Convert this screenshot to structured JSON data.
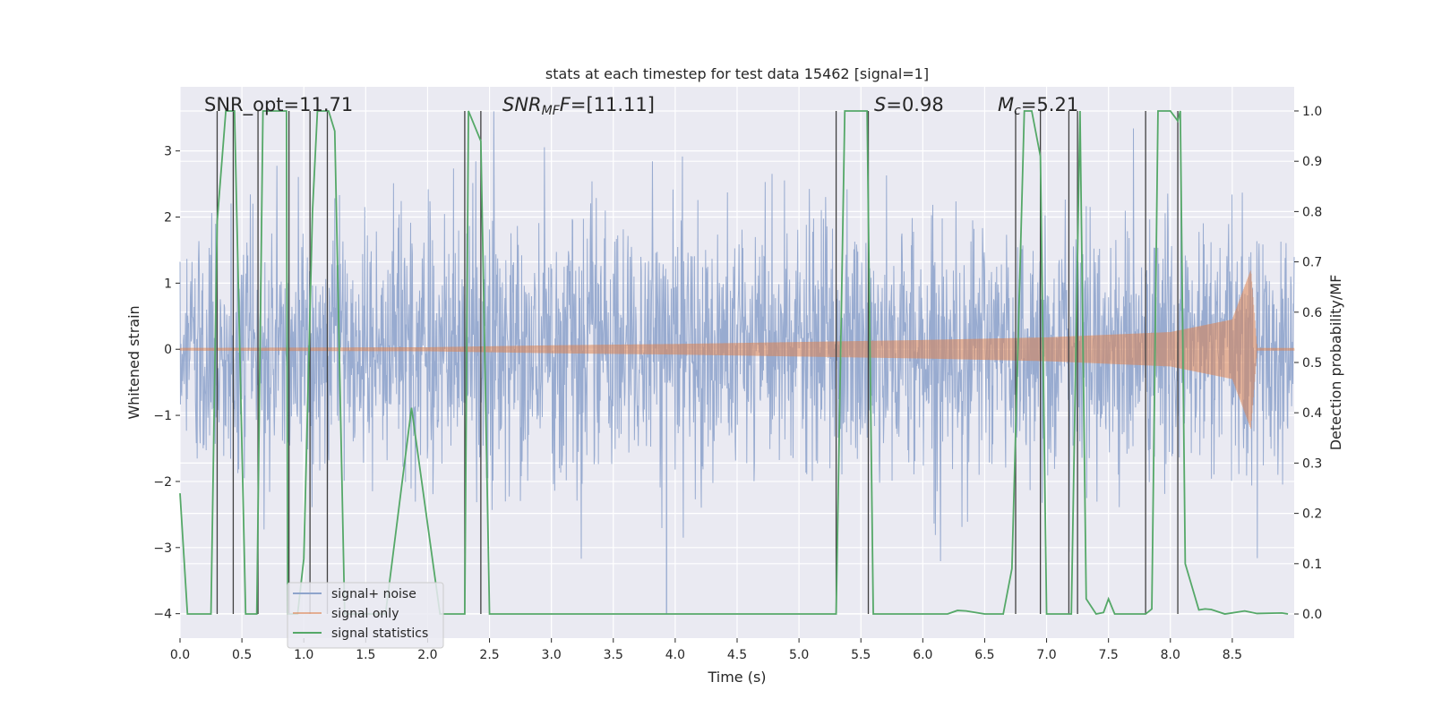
{
  "chart_data": {
    "type": "line",
    "title": "stats at each timestep for test data 15462 [signal=1]",
    "xlabel": "Time (s)",
    "ylabel": "Whitened strain",
    "ylabel_right": "Detection probability/MF",
    "xlim": [
      0,
      9.0
    ],
    "ylim": [
      -4.37,
      3.97
    ],
    "ylim_right": [
      -0.048,
      1.048
    ],
    "xticks": [
      0.0,
      0.5,
      1.0,
      1.5,
      2.0,
      2.5,
      3.0,
      3.5,
      4.0,
      4.5,
      5.0,
      5.5,
      6.0,
      6.5,
      7.0,
      7.5,
      8.0,
      8.5
    ],
    "xtick_labels": [
      "0.0",
      "0.5",
      "1.0",
      "1.5",
      "2.0",
      "2.5",
      "3.0",
      "3.5",
      "4.0",
      "4.5",
      "5.0",
      "5.5",
      "6.0",
      "6.5",
      "7.0",
      "7.5",
      "8.0",
      "8.5"
    ],
    "yticks": [
      -4,
      -3,
      -2,
      -1,
      0,
      1,
      2,
      3
    ],
    "ytick_labels": [
      "−4",
      "−3",
      "−2",
      "−1",
      "0",
      "1",
      "2",
      "3"
    ],
    "yticks_right": [
      0.0,
      0.1,
      0.2,
      0.3,
      0.4,
      0.5,
      0.6,
      0.7,
      0.8,
      0.9,
      1.0
    ],
    "ytick_labels_right": [
      "0.0",
      "0.1",
      "0.2",
      "0.3",
      "0.4",
      "0.5",
      "0.6",
      "0.7",
      "0.8",
      "0.9",
      "1.0"
    ],
    "colors": {
      "background": "#eaeaf2",
      "grid": "#ffffff",
      "noise": "#8fa4cc",
      "signal": "#dd8452",
      "stats": "#55a868",
      "vlines": "#404040"
    },
    "annotations": {
      "snr_opt": "SNR_opt=11.71",
      "snr_mf_main": "SNR",
      "snr_mf_sub": "MF",
      "snr_mf_rest": "=[11.11]",
      "s_main": "S",
      "s_rest": "=0.98",
      "mc_main": "M",
      "mc_sub": "c",
      "mc_rest": "=5.21"
    },
    "legend": {
      "position": "lower-left",
      "entries": [
        "signal+ noise",
        "signal only",
        "signal statistics"
      ]
    },
    "series": [
      {
        "name": "signal+ noise",
        "type": "noise",
        "x_range": [
          0,
          9.0
        ],
        "amplitude_range": [
          -2.3,
          2.3
        ],
        "extreme_values": [
          -4.0,
          3.6
        ]
      },
      {
        "name": "signal only",
        "type": "chirp",
        "x_range": [
          0,
          9.0
        ],
        "envelope": {
          "x": [
            0.0,
            2.0,
            3.0,
            4.0,
            5.0,
            6.0,
            7.0,
            8.0,
            8.5,
            8.65,
            8.7
          ],
          "y": [
            0.02,
            0.03,
            0.06,
            0.08,
            0.11,
            0.14,
            0.18,
            0.26,
            0.45,
            1.2,
            0.02
          ]
        }
      },
      {
        "name": "signal statistics",
        "type": "line",
        "axis": "right",
        "x": [
          0.0,
          0.06,
          0.25,
          0.3,
          0.37,
          0.44,
          0.53,
          0.62,
          0.67,
          0.86,
          0.87,
          0.95,
          1.0,
          1.07,
          1.11,
          1.2,
          1.25,
          1.33,
          1.4,
          1.66,
          1.87,
          2.1,
          2.16,
          2.24,
          2.3,
          2.33,
          2.43,
          2.5,
          2.55,
          2.6,
          5.25,
          5.3,
          5.37,
          5.55,
          5.6,
          6.2,
          6.28,
          6.35,
          6.5,
          6.65,
          6.72,
          6.82,
          6.88,
          6.95,
          7.0,
          7.1,
          7.2,
          7.27,
          7.32,
          7.4,
          7.46,
          7.5,
          7.55,
          7.8,
          7.85,
          7.9,
          8.0,
          8.06,
          8.08,
          8.12,
          8.23,
          8.28,
          8.33,
          8.44,
          8.6,
          8.7,
          8.9,
          8.95
        ],
        "y": [
          0.24,
          0.0,
          0.0,
          0.78,
          1.0,
          1.0,
          0.0,
          0.0,
          1.0,
          1.0,
          0.0,
          0.0,
          0.11,
          0.8,
          1.0,
          1.0,
          0.96,
          0.0,
          0.0,
          0.0,
          0.41,
          0.0,
          0.0,
          0.0,
          0.0,
          1.0,
          0.94,
          0.0,
          0.0,
          0.0,
          0.0,
          0.0,
          1.0,
          1.0,
          0.0,
          0.0,
          0.007,
          0.006,
          0.0,
          0.0,
          0.09,
          1.0,
          1.0,
          0.91,
          0.0,
          0.0,
          0.0,
          1.0,
          0.03,
          0.0,
          0.003,
          0.03,
          0.0,
          0.0,
          0.01,
          1.0,
          1.0,
          0.98,
          1.0,
          0.1,
          0.008,
          0.01,
          0.009,
          0.0,
          0.006,
          0.001,
          0.002,
          0.0
        ]
      }
    ],
    "vlines": [
      0.3,
      0.43,
      0.63,
      0.88,
      1.05,
      1.19,
      2.3,
      2.43,
      5.3,
      5.56,
      6.75,
      6.95,
      7.18,
      7.25,
      7.8,
      8.06
    ]
  }
}
